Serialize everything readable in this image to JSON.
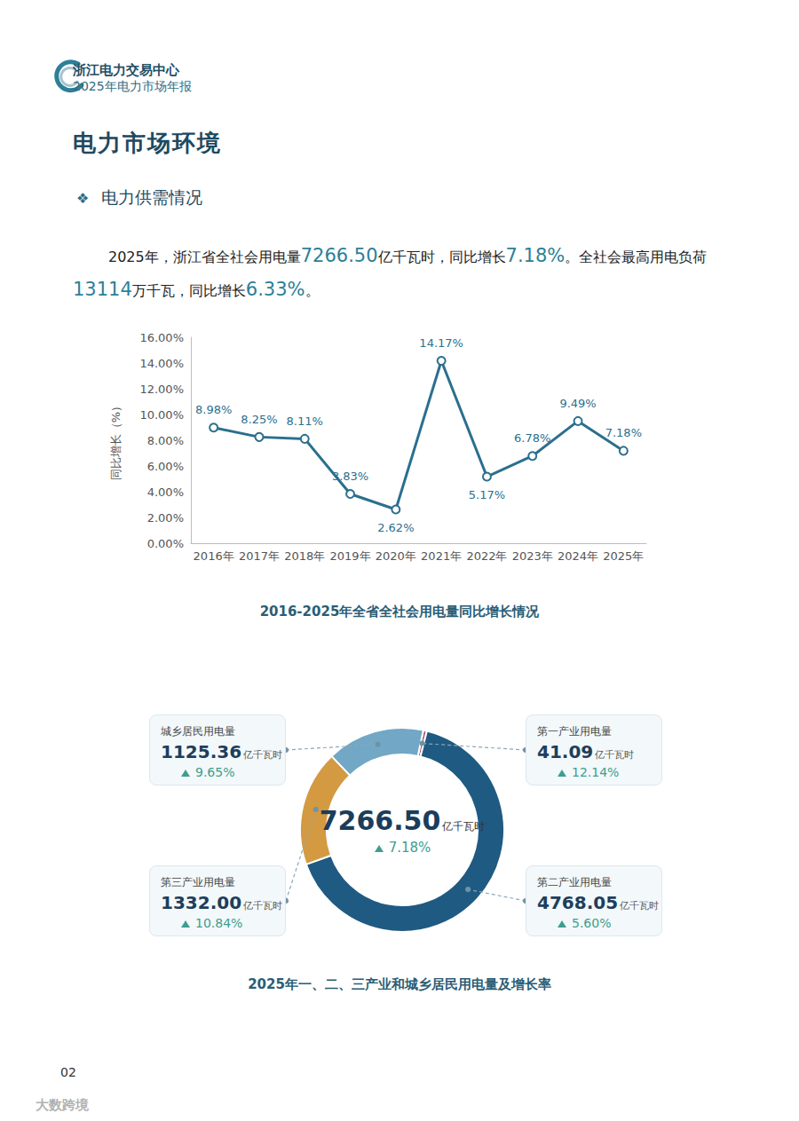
{
  "header": {
    "org": "浙江电力交易中心",
    "report": "2025年电力市场年报"
  },
  "page_title": "电力市场环境",
  "section_bullet": "❖",
  "section_title": "电力供需情况",
  "intro": [
    "2025年，浙江省全社会用电量",
    {
      "em": "7266.50"
    },
    "亿千瓦时，同比增长",
    {
      "em": "7.18%"
    },
    "。全社会最高用电负荷",
    {
      "em": "13114"
    },
    "万千瓦，同比增长",
    {
      "em": "6.33%"
    },
    "。"
  ],
  "chart_data": [
    {
      "type": "line",
      "caption": "2016-2025年全省全社会用电量同比增长情况",
      "y_label": "同比增长（%）",
      "categories": [
        "2016年",
        "2017年",
        "2018年",
        "2019年",
        "2020年",
        "2021年",
        "2022年",
        "2023年",
        "2024年",
        "2025年"
      ],
      "values": [
        8.98,
        8.25,
        8.11,
        3.83,
        2.62,
        14.17,
        5.17,
        6.78,
        9.49,
        7.18
      ],
      "value_labels": [
        "8.98%",
        "8.25%",
        "8.11%",
        "3.83%",
        "2.62%",
        "14.17%",
        "5.17%",
        "6.78%",
        "9.49%",
        "7.18%"
      ],
      "color": "#2b6f8e",
      "marker": "circle",
      "data_labels": true,
      "grid": false,
      "ylim": [
        0,
        16
      ],
      "yticks": [
        {
          "value": 0,
          "label": "0.00%"
        },
        {
          "value": 2,
          "label": "2.00%"
        },
        {
          "value": 4,
          "label": "4.00%"
        },
        {
          "value": 6,
          "label": "6.00%"
        },
        {
          "value": 8,
          "label": "8.00%"
        },
        {
          "value": 10,
          "label": "10.00%"
        },
        {
          "value": 12,
          "label": "12.00%"
        },
        {
          "value": 14,
          "label": "14.00%"
        },
        {
          "value": 16,
          "label": "16.00%"
        }
      ]
    },
    {
      "type": "donut",
      "caption": "2025年一、二、三产业和城乡居民用电量及增长率",
      "total": 7266.5,
      "total_label": "7266.50",
      "total_growth": 7.18,
      "total_growth_label": "7.18%",
      "unit": "亿千瓦时",
      "categories": [
        "第一产业用电量",
        "第二产业用电量",
        "第三产业用电量",
        "城乡居民用电量"
      ],
      "values": [
        41.09,
        4768.05,
        1332,
        1125.36
      ],
      "value_labels": [
        "41.09",
        "4768.05",
        "1332.00",
        "1125.36"
      ],
      "growth": [
        12.14,
        5.6,
        10.84,
        9.65
      ],
      "growth_labels": [
        "12.14%",
        "5.60%",
        "10.84%",
        "9.65%"
      ],
      "colors": [
        "#b0556f",
        "#1f5a82",
        "#d39a42",
        "#72a7c6"
      ],
      "data_labels": true
    }
  ],
  "page_number": "02",
  "watermark": "大数跨境"
}
